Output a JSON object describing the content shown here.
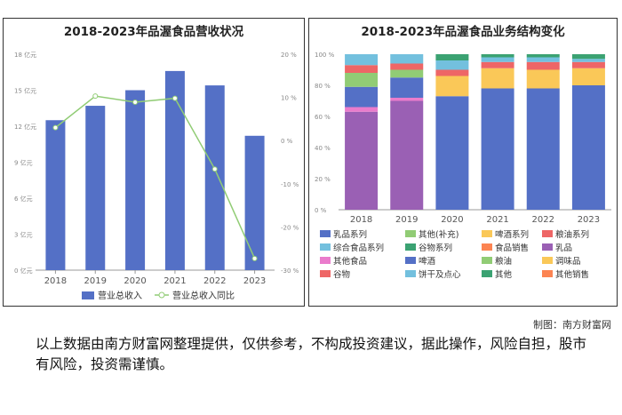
{
  "credit": "制图：南方财富网",
  "disclaimer": "以上数据由南方财富网整理提供，仅供参考，不构成投资建议，据此操作，风险自担，股市有风险，投资需谨慎。",
  "chart_data": [
    {
      "type": "bar",
      "title": "2018-2023年品渥食品营收状况",
      "categories": [
        "2018",
        "2019",
        "2020",
        "2021",
        "2022",
        "2023"
      ],
      "y_left_ticks": [
        "0 亿元",
        "3 亿元",
        "6 亿元",
        "9 亿元",
        "12 亿元",
        "15 亿元",
        "18 亿元"
      ],
      "y_right_ticks": [
        "-30 %",
        "-20 %",
        "-10 %",
        "0 %",
        "10 %",
        "20 %"
      ],
      "ylim_left": [
        0,
        18
      ],
      "ylim_right": [
        -30,
        20
      ],
      "series": [
        {
          "name": "营业总收入",
          "type": "bar",
          "color": "#5470c6",
          "values": [
            12.5,
            13.7,
            15.0,
            16.6,
            15.4,
            11.2
          ]
        },
        {
          "name": "营业总收入同比",
          "type": "line",
          "color": "#91cc75",
          "values": [
            3.0,
            10.3,
            8.9,
            9.8,
            -6.6,
            -27.3
          ]
        }
      ],
      "grid": false,
      "legend_position": "bottom"
    },
    {
      "type": "stacked-bar",
      "title": "2018-2023年品渥食品业务结构变化",
      "categories": [
        "2018",
        "2019",
        "2020",
        "2021",
        "2022",
        "2023"
      ],
      "y_ticks": [
        "0 %",
        "20 %",
        "40 %",
        "60 %",
        "80 %",
        "100 %"
      ],
      "ylim": [
        0,
        100
      ],
      "series": [
        {
          "name": "乳品系列",
          "color": "#5470c6",
          "values": [
            0,
            0,
            73,
            78,
            78,
            80
          ]
        },
        {
          "name": "其他(补充)",
          "color": "#91cc75",
          "values": [
            0,
            0,
            0,
            0,
            0,
            0
          ]
        },
        {
          "name": "啤酒系列",
          "color": "#fac858",
          "values": [
            0,
            0,
            13,
            13,
            12,
            11
          ]
        },
        {
          "name": "粮油系列",
          "color": "#ee6666",
          "values": [
            0,
            0,
            4,
            4,
            5,
            4
          ]
        },
        {
          "name": "综合食品系列",
          "color": "#73c0de",
          "values": [
            0,
            0,
            6,
            3,
            3,
            2
          ]
        },
        {
          "name": "谷物系列",
          "color": "#3ba272",
          "values": [
            0,
            0,
            4,
            2,
            2,
            3
          ]
        },
        {
          "name": "食品销售",
          "color": "#fc8452",
          "values": [
            0,
            0,
            0,
            0,
            0,
            0
          ]
        },
        {
          "name": "乳品",
          "color": "#9a60b4",
          "values": [
            63,
            70,
            0,
            0,
            0,
            0
          ]
        },
        {
          "name": "其他食品",
          "color": "#ea7ccc",
          "values": [
            3,
            2,
            0,
            0,
            0,
            0
          ]
        },
        {
          "name": "啤酒",
          "color": "#5470c6",
          "values": [
            13,
            13,
            0,
            0,
            0,
            0
          ]
        },
        {
          "name": "粮油",
          "color": "#91cc75",
          "values": [
            9,
            5,
            0,
            0,
            0,
            0
          ]
        },
        {
          "name": "调味品",
          "color": "#fac858",
          "values": [
            0,
            0,
            0,
            0,
            0,
            0
          ]
        },
        {
          "name": "谷物",
          "color": "#ee6666",
          "values": [
            5,
            4,
            0,
            0,
            0,
            0
          ]
        },
        {
          "name": "饼干及点心",
          "color": "#73c0de",
          "values": [
            7,
            6,
            0,
            0,
            0,
            0
          ]
        },
        {
          "name": "其他",
          "color": "#3ba272",
          "values": [
            0,
            0,
            0,
            0,
            0,
            0
          ]
        },
        {
          "name": "其他销售",
          "color": "#fc8452",
          "values": [
            0,
            0,
            0,
            0,
            0,
            0
          ]
        }
      ],
      "grid": false,
      "legend_position": "bottom"
    }
  ]
}
